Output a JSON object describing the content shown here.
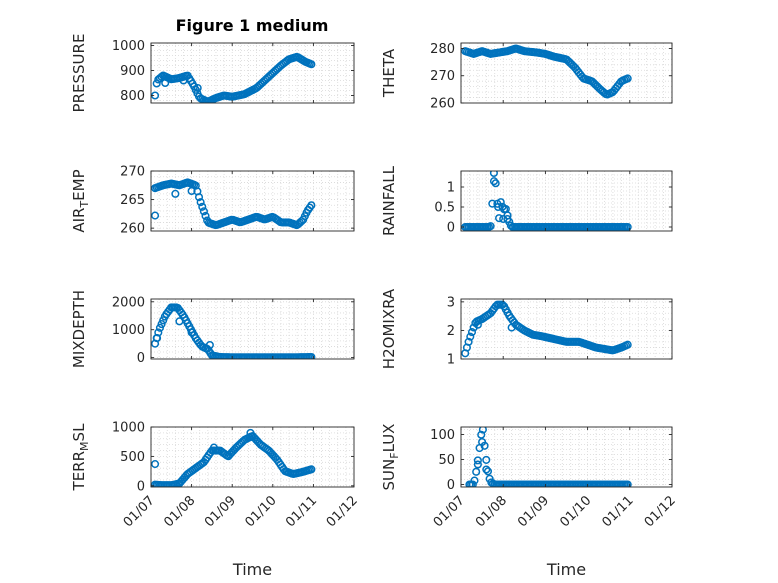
{
  "figure": {
    "title": "Figure 1 medium"
  },
  "style": {
    "marker_color": "#0072BD",
    "axis_color": "#262626",
    "grid_color": "#D8D8D8"
  },
  "x_ticks": [
    "01/07",
    "01/08",
    "01/09",
    "01/10",
    "01/11",
    "01/12"
  ],
  "chart_data": [
    {
      "type": "scatter",
      "ylabel": {
        "main": "PRESSURE",
        "sub": "",
        "after": ""
      },
      "ylim": [
        770,
        1010
      ],
      "yticks": [
        800,
        900,
        1000
      ],
      "grid": true,
      "xlabel": "",
      "xticks_shown": false,
      "knots": [
        [
          0.1,
          800
        ],
        [
          0.15,
          860
        ],
        [
          0.3,
          880
        ],
        [
          0.5,
          865
        ],
        [
          0.7,
          870
        ],
        [
          0.9,
          880
        ],
        [
          1.05,
          840
        ],
        [
          1.2,
          790
        ],
        [
          1.4,
          775
        ],
        [
          1.6,
          790
        ],
        [
          1.8,
          800
        ],
        [
          2.0,
          795
        ],
        [
          2.3,
          805
        ],
        [
          2.6,
          830
        ],
        [
          2.8,
          860
        ],
        [
          3.0,
          890
        ],
        [
          3.2,
          920
        ],
        [
          3.4,
          945
        ],
        [
          3.6,
          955
        ],
        [
          3.8,
          935
        ],
        [
          3.95,
          925
        ]
      ],
      "outliers": [
        [
          0.35,
          850
        ],
        [
          0.8,
          860
        ],
        [
          1.15,
          830
        ]
      ]
    },
    {
      "type": "scatter",
      "ylabel": {
        "main": "THETA",
        "sub": "",
        "after": ""
      },
      "ylim": [
        260,
        282
      ],
      "yticks": [
        260,
        270,
        280
      ],
      "grid": true,
      "xlabel": "",
      "xticks_shown": false,
      "knots": [
        [
          0.1,
          279
        ],
        [
          0.3,
          278
        ],
        [
          0.5,
          279
        ],
        [
          0.7,
          278
        ],
        [
          0.9,
          278.5
        ],
        [
          1.1,
          279
        ],
        [
          1.3,
          280
        ],
        [
          1.5,
          279
        ],
        [
          1.8,
          278.5
        ],
        [
          2.0,
          278
        ],
        [
          2.2,
          277
        ],
        [
          2.5,
          276
        ],
        [
          2.7,
          273
        ],
        [
          2.9,
          269
        ],
        [
          3.1,
          268
        ],
        [
          3.3,
          265
        ],
        [
          3.45,
          263
        ],
        [
          3.6,
          264
        ],
        [
          3.8,
          268
        ],
        [
          3.95,
          269
        ]
      ],
      "outliers": []
    },
    {
      "type": "scatter",
      "ylabel": {
        "main": "AIR",
        "sub": "T",
        "after": "EMP"
      },
      "ylim": [
        259.5,
        270
      ],
      "yticks": [
        260,
        265,
        270
      ],
      "grid": true,
      "xlabel": "",
      "xticks_shown": false,
      "knots": [
        [
          0.1,
          267
        ],
        [
          0.3,
          267.5
        ],
        [
          0.5,
          267.8
        ],
        [
          0.7,
          267.5
        ],
        [
          0.9,
          268
        ],
        [
          1.1,
          267.5
        ],
        [
          1.2,
          265
        ],
        [
          1.3,
          263
        ],
        [
          1.4,
          261
        ],
        [
          1.6,
          260.5
        ],
        [
          1.8,
          261
        ],
        [
          2.0,
          261.5
        ],
        [
          2.2,
          261
        ],
        [
          2.4,
          261.5
        ],
        [
          2.6,
          262
        ],
        [
          2.8,
          261.5
        ],
        [
          3.0,
          262
        ],
        [
          3.2,
          261
        ],
        [
          3.4,
          261
        ],
        [
          3.6,
          260.5
        ],
        [
          3.75,
          261.5
        ],
        [
          3.85,
          263
        ],
        [
          3.95,
          264
        ]
      ],
      "outliers": [
        [
          0.1,
          262.2
        ],
        [
          0.6,
          266
        ],
        [
          1.0,
          266.5
        ]
      ]
    },
    {
      "type": "scatter",
      "ylabel": {
        "main": "RAINFALL",
        "sub": "",
        "after": ""
      },
      "ylim": [
        -0.1,
        1.4
      ],
      "yticks": [
        0,
        0.5,
        1
      ],
      "grid": true,
      "xlabel": "",
      "xticks_shown": false,
      "knots": [
        [
          0.1,
          0
        ],
        [
          0.6,
          0
        ],
        [
          0.7,
          0
        ],
        [
          0.75,
          0.7
        ],
        [
          0.8,
          1.4
        ],
        [
          0.85,
          0.7
        ],
        [
          0.9,
          0.2
        ],
        [
          0.95,
          0.7
        ],
        [
          1.0,
          0.4
        ],
        [
          1.05,
          0.5
        ],
        [
          1.1,
          0.3
        ],
        [
          1.15,
          0.1
        ],
        [
          1.2,
          0
        ],
        [
          1.5,
          0
        ],
        [
          2.0,
          0
        ],
        [
          2.5,
          0
        ],
        [
          3.0,
          0
        ],
        [
          3.5,
          0
        ],
        [
          3.95,
          0
        ]
      ],
      "outliers": [
        [
          0.78,
          1.35
        ],
        [
          0.88,
          0.5
        ],
        [
          1.0,
          0.2
        ],
        [
          1.1,
          0.2
        ]
      ]
    },
    {
      "type": "scatter",
      "ylabel": {
        "main": "MIXDEPTH",
        "sub": "",
        "after": ""
      },
      "ylim": [
        -50,
        2100
      ],
      "yticks": [
        0,
        1000,
        2000
      ],
      "grid": true,
      "xlabel": "",
      "xticks_shown": false,
      "knots": [
        [
          0.1,
          500
        ],
        [
          0.2,
          1000
        ],
        [
          0.35,
          1500
        ],
        [
          0.5,
          1800
        ],
        [
          0.65,
          1800
        ],
        [
          0.8,
          1500
        ],
        [
          0.95,
          1100
        ],
        [
          1.1,
          700
        ],
        [
          1.25,
          400
        ],
        [
          1.4,
          300
        ],
        [
          1.5,
          80
        ],
        [
          1.7,
          20
        ],
        [
          2.0,
          10
        ],
        [
          2.5,
          10
        ],
        [
          3.0,
          10
        ],
        [
          3.5,
          10
        ],
        [
          3.95,
          20
        ]
      ],
      "outliers": [
        [
          0.15,
          700
        ],
        [
          0.7,
          1300
        ],
        [
          1.0,
          900
        ],
        [
          1.45,
          450
        ]
      ]
    },
    {
      "type": "scatter",
      "ylabel": {
        "main": "H2OMIXRA",
        "sub": "",
        "after": ""
      },
      "ylim": [
        1,
        3.1
      ],
      "yticks": [
        1,
        2,
        3
      ],
      "grid": true,
      "xlabel": "",
      "xticks_shown": false,
      "knots": [
        [
          0.1,
          1.2
        ],
        [
          0.2,
          1.7
        ],
        [
          0.35,
          2.3
        ],
        [
          0.5,
          2.4
        ],
        [
          0.7,
          2.6
        ],
        [
          0.85,
          2.9
        ],
        [
          1.0,
          2.9
        ],
        [
          1.15,
          2.5
        ],
        [
          1.3,
          2.2
        ],
        [
          1.5,
          2.0
        ],
        [
          1.7,
          1.85
        ],
        [
          1.9,
          1.8
        ],
        [
          2.2,
          1.7
        ],
        [
          2.5,
          1.6
        ],
        [
          2.8,
          1.6
        ],
        [
          3.0,
          1.5
        ],
        [
          3.2,
          1.4
        ],
        [
          3.4,
          1.35
        ],
        [
          3.6,
          1.3
        ],
        [
          3.8,
          1.4
        ],
        [
          3.95,
          1.5
        ]
      ],
      "outliers": [
        [
          0.4,
          2.2
        ],
        [
          1.2,
          2.1
        ]
      ]
    },
    {
      "type": "scatter",
      "ylabel": {
        "main": "TERR",
        "sub": "M",
        "after": "SL"
      },
      "ylim": [
        -20,
        1000
      ],
      "yticks": [
        0,
        500,
        1000
      ],
      "grid": true,
      "xlabel": "Time",
      "xticks_shown": true,
      "knots": [
        [
          0.1,
          20
        ],
        [
          0.3,
          10
        ],
        [
          0.5,
          10
        ],
        [
          0.7,
          40
        ],
        [
          0.9,
          200
        ],
        [
          1.1,
          300
        ],
        [
          1.3,
          400
        ],
        [
          1.5,
          600
        ],
        [
          1.7,
          600
        ],
        [
          1.9,
          500
        ],
        [
          2.1,
          650
        ],
        [
          2.3,
          780
        ],
        [
          2.5,
          850
        ],
        [
          2.7,
          700
        ],
        [
          2.9,
          600
        ],
        [
          3.1,
          450
        ],
        [
          3.3,
          250
        ],
        [
          3.5,
          200
        ],
        [
          3.7,
          230
        ],
        [
          3.95,
          280
        ]
      ],
      "outliers": [
        [
          0.1,
          370
        ],
        [
          2.45,
          900
        ],
        [
          1.55,
          650
        ]
      ]
    },
    {
      "type": "scatter",
      "ylabel": {
        "main": "SUN",
        "sub": "F",
        "after": "LUX"
      },
      "ylim": [
        -5,
        115
      ],
      "yticks": [
        0,
        50,
        100
      ],
      "grid": true,
      "xlabel": "Time",
      "xticks_shown": true,
      "knots": [
        [
          0.2,
          0
        ],
        [
          0.3,
          0
        ],
        [
          0.35,
          20
        ],
        [
          0.42,
          60
        ],
        [
          0.48,
          100
        ],
        [
          0.52,
          110
        ],
        [
          0.58,
          60
        ],
        [
          0.65,
          20
        ],
        [
          0.7,
          5
        ],
        [
          0.8,
          0
        ],
        [
          1.2,
          0
        ],
        [
          1.6,
          0
        ],
        [
          2.0,
          0
        ],
        [
          2.5,
          0
        ],
        [
          3.0,
          0
        ],
        [
          3.5,
          0
        ],
        [
          3.95,
          0
        ]
      ],
      "outliers": [
        [
          0.4,
          40
        ],
        [
          0.5,
          85
        ],
        [
          0.6,
          30
        ]
      ]
    }
  ]
}
